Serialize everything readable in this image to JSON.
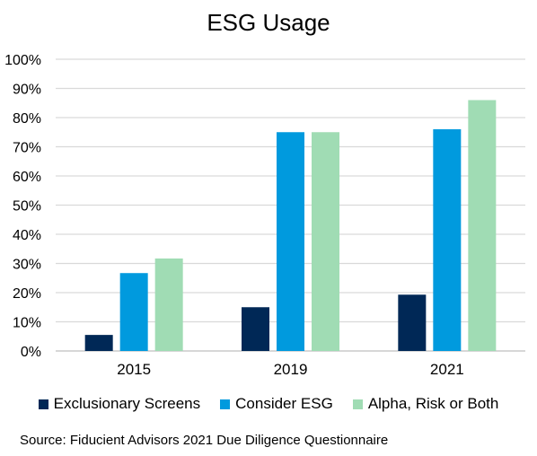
{
  "chart_data": {
    "type": "bar",
    "title": "ESG Usage",
    "categories": [
      "2015",
      "2019",
      "2021"
    ],
    "series": [
      {
        "name": "Exclusionary Screens",
        "color": "#002856",
        "values": [
          5.5,
          15,
          19.3
        ]
      },
      {
        "name": "Consider ESG",
        "color": "#009ADE",
        "values": [
          26.7,
          75,
          76
        ]
      },
      {
        "name": "Alpha, Risk or Both",
        "color": "#A0DCB4",
        "values": [
          31.7,
          75,
          86
        ]
      }
    ],
    "yticks": [
      "0%",
      "10%",
      "20%",
      "30%",
      "40%",
      "50%",
      "60%",
      "70%",
      "80%",
      "90%",
      "100%"
    ],
    "ylim": [
      0,
      100
    ],
    "grid": true,
    "legend_position": "bottom",
    "xlabel": "",
    "ylabel": ""
  },
  "source": "Source: Fiducient Advisors 2021 Due Diligence Questionnaire"
}
